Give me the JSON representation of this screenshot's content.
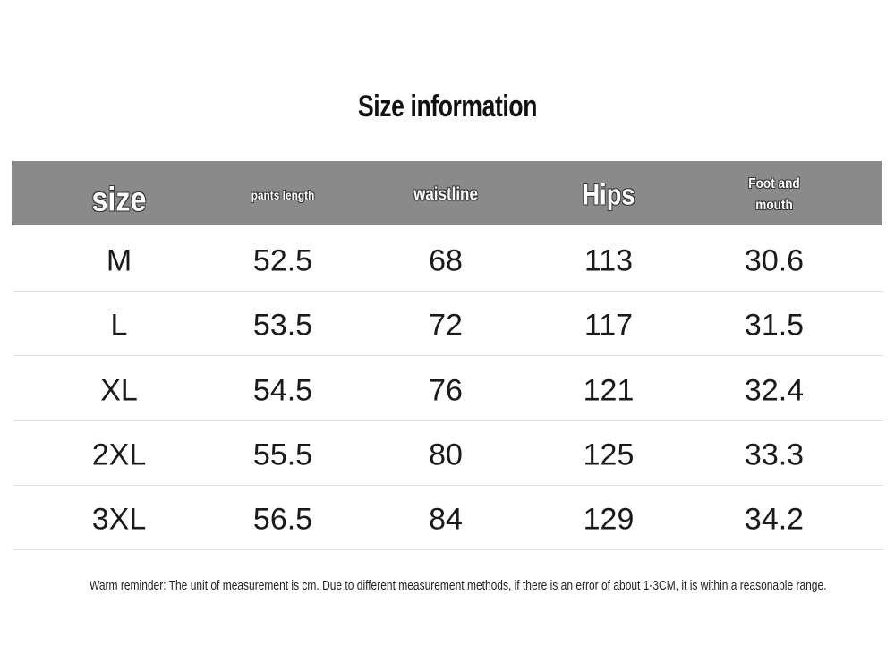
{
  "title": "Size information",
  "table": {
    "header": [
      "size",
      "pants length",
      "waistline",
      "Hips",
      "Foot and mouth"
    ],
    "rows": [
      [
        "M",
        "52.5",
        "68",
        "113",
        "30.6"
      ],
      [
        "L",
        "53.5",
        "72",
        "117",
        "31.5"
      ],
      [
        "XL",
        "54.5",
        "76",
        "121",
        "32.4"
      ],
      [
        "2XL",
        "55.5",
        "80",
        "125",
        "33.3"
      ],
      [
        "3XL",
        "56.5",
        "84",
        "129",
        "34.2"
      ]
    ]
  },
  "note": "Warm reminder: The unit of measurement is cm. Due to different measurement methods, if there is an error of about 1-3CM, it is within a reasonable range."
}
